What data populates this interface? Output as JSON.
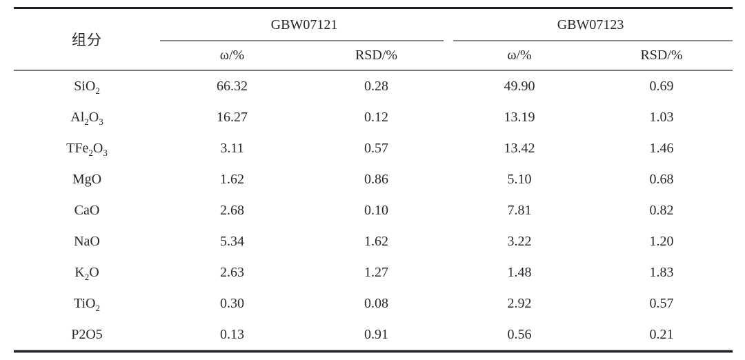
{
  "table": {
    "corner_label": "组分",
    "groups": [
      {
        "label": "GBW07121",
        "subcols": [
          "ω/%",
          "RSD/%"
        ]
      },
      {
        "label": "GBW07123",
        "subcols": [
          "ω/%",
          "RSD/%"
        ]
      }
    ],
    "rows": [
      {
        "component": [
          [
            "SiO",
            false
          ],
          [
            "2",
            true
          ]
        ],
        "values": [
          "66.32",
          "0.28",
          "49.90",
          "0.69"
        ]
      },
      {
        "component": [
          [
            "Al",
            false
          ],
          [
            "2",
            true
          ],
          [
            "O",
            false
          ],
          [
            "3",
            true
          ]
        ],
        "values": [
          "16.27",
          "0.12",
          "13.19",
          "1.03"
        ]
      },
      {
        "component": [
          [
            "TFe",
            false
          ],
          [
            "2",
            true
          ],
          [
            "O",
            false
          ],
          [
            "3",
            true
          ]
        ],
        "values": [
          "3.11",
          "0.57",
          "13.42",
          "1.46"
        ]
      },
      {
        "component": [
          [
            "MgO",
            false
          ]
        ],
        "values": [
          "1.62",
          "0.86",
          "5.10",
          "0.68"
        ]
      },
      {
        "component": [
          [
            "CaO",
            false
          ]
        ],
        "values": [
          "2.68",
          "0.10",
          "7.81",
          "0.82"
        ]
      },
      {
        "component": [
          [
            "NaO",
            false
          ]
        ],
        "values": [
          "5.34",
          "1.62",
          "3.22",
          "1.20"
        ]
      },
      {
        "component": [
          [
            "K",
            false
          ],
          [
            "2",
            true
          ],
          [
            "O",
            false
          ]
        ],
        "values": [
          "2.63",
          "1.27",
          "1.48",
          "1.83"
        ]
      },
      {
        "component": [
          [
            "TiO",
            false
          ],
          [
            "2",
            true
          ]
        ],
        "values": [
          "0.30",
          "0.08",
          "2.92",
          "0.57"
        ]
      },
      {
        "component": [
          [
            "P2O5",
            false
          ]
        ],
        "values": [
          "0.13",
          "0.91",
          "0.56",
          "0.21"
        ]
      }
    ]
  },
  "chart_data": {
    "type": "table",
    "columns": [
      "组分",
      "GBW07121 ω/%",
      "GBW07121 RSD/%",
      "GBW07123 ω/%",
      "GBW07123 RSD/%"
    ],
    "rows": [
      [
        "SiO2",
        66.32,
        0.28,
        49.9,
        0.69
      ],
      [
        "Al2O3",
        16.27,
        0.12,
        13.19,
        1.03
      ],
      [
        "TFe2O3",
        3.11,
        0.57,
        13.42,
        1.46
      ],
      [
        "MgO",
        1.62,
        0.86,
        5.1,
        0.68
      ],
      [
        "CaO",
        2.68,
        0.1,
        7.81,
        0.82
      ],
      [
        "NaO",
        5.34,
        1.62,
        3.22,
        1.2
      ],
      [
        "K2O",
        2.63,
        1.27,
        1.48,
        1.83
      ],
      [
        "TiO2",
        0.3,
        0.08,
        2.92,
        0.57
      ],
      [
        "P2O5",
        0.13,
        0.91,
        0.56,
        0.21
      ]
    ]
  },
  "colors": {
    "rule_dark": "#1e1e24",
    "rule_header": "#76767a",
    "rule_group": "#8c8c8c",
    "text": "#26262c",
    "background": "#ffffff"
  }
}
